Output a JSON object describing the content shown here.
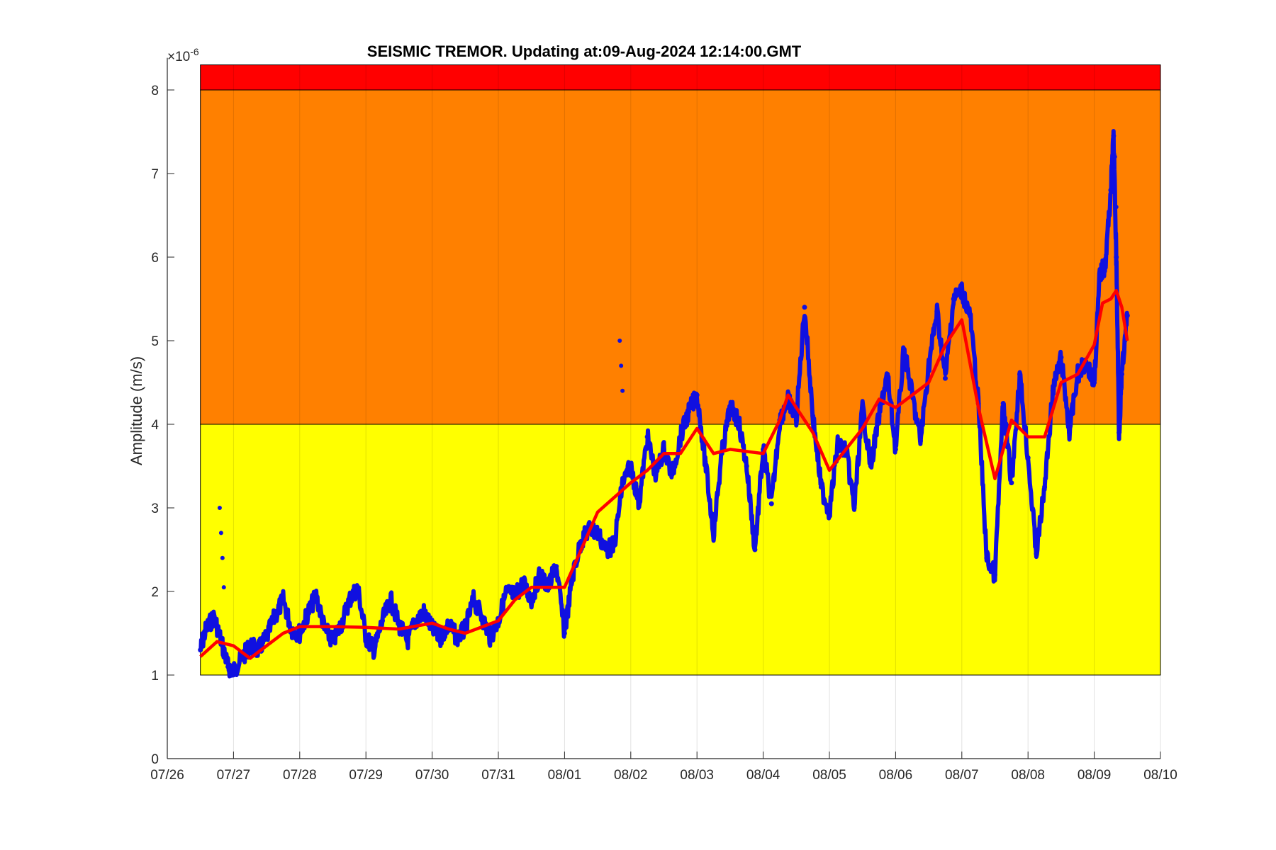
{
  "chart_data": {
    "type": "scatter",
    "title": "SEISMIC TREMOR. Updating at:09-Aug-2024 12:14:00.GMT",
    "ylabel": "Amplitude (m/s)",
    "xlabel": "",
    "y_multiplier_label": "×10",
    "y_multiplier_exponent": "-6",
    "ylim": [
      0,
      8.3
    ],
    "xlim": [
      "07/26",
      "08/10"
    ],
    "grid": "vertical at date ticks",
    "x_ticks": [
      "07/26",
      "07/27",
      "07/28",
      "07/29",
      "07/30",
      "07/31",
      "08/01",
      "08/02",
      "08/03",
      "08/04",
      "08/05",
      "08/06",
      "08/07",
      "08/08",
      "08/09",
      "08/10"
    ],
    "y_ticks": [
      "0",
      "1",
      "2",
      "3",
      "4",
      "5",
      "6",
      "7",
      "8"
    ],
    "threshold_bands": [
      {
        "level": "yellow",
        "from": 1,
        "to": 4,
        "color": "#FFFF00"
      },
      {
        "level": "orange",
        "from": 4,
        "to": 8,
        "color": "#FF8000"
      },
      {
        "level": "red",
        "from": 8,
        "to": 8.3,
        "color": "#FF0000"
      }
    ],
    "series": [
      {
        "kind": "raw-samples",
        "color": "#1010E0",
        "points": [
          [
            "07/26 12:00",
            1.3
          ],
          [
            "07/26 14:00",
            1.55
          ],
          [
            "07/26 17:00",
            1.7
          ],
          [
            "07/26 20:00",
            1.35
          ],
          [
            "07/26 22:00",
            1.1
          ],
          [
            "07/27 00:00",
            1.05
          ],
          [
            "07/27 03:00",
            1.2
          ],
          [
            "07/27 06:00",
            1.35
          ],
          [
            "07/27 09:00",
            1.3
          ],
          [
            "07/27 12:00",
            1.45
          ],
          [
            "07/27 15:00",
            1.7
          ],
          [
            "07/27 18:00",
            1.9
          ],
          [
            "07/27 21:00",
            1.55
          ],
          [
            "07/28 00:00",
            1.5
          ],
          [
            "07/28 03:00",
            1.75
          ],
          [
            "07/28 06:00",
            1.95
          ],
          [
            "07/28 09:00",
            1.55
          ],
          [
            "07/28 12:00",
            1.4
          ],
          [
            "07/28 15:00",
            1.6
          ],
          [
            "07/28 18:00",
            1.9
          ],
          [
            "07/28 21:00",
            2.05
          ],
          [
            "07/29 00:00",
            1.45
          ],
          [
            "07/29 03:00",
            1.3
          ],
          [
            "07/29 06:00",
            1.65
          ],
          [
            "07/29 09:00",
            1.9
          ],
          [
            "07/29 12:00",
            1.6
          ],
          [
            "07/29 15:00",
            1.4
          ],
          [
            "07/29 18:00",
            1.65
          ],
          [
            "07/29 21:00",
            1.75
          ],
          [
            "07/30 00:00",
            1.55
          ],
          [
            "07/30 03:00",
            1.45
          ],
          [
            "07/30 06:00",
            1.6
          ],
          [
            "07/30 09:00",
            1.45
          ],
          [
            "07/30 12:00",
            1.55
          ],
          [
            "07/30 15:00",
            1.9
          ],
          [
            "07/30 18:00",
            1.7
          ],
          [
            "07/30 21:00",
            1.45
          ],
          [
            "07/31 00:00",
            1.65
          ],
          [
            "07/31 03:00",
            2.0
          ],
          [
            "07/31 06:00",
            1.95
          ],
          [
            "07/31 09:00",
            2.1
          ],
          [
            "07/31 12:00",
            1.9
          ],
          [
            "07/31 15:00",
            2.2
          ],
          [
            "07/31 18:00",
            2.05
          ],
          [
            "07/31 21:00",
            2.3
          ],
          [
            "08/01 00:00",
            1.5
          ],
          [
            "08/01 03:00",
            2.2
          ],
          [
            "08/01 06:00",
            2.6
          ],
          [
            "08/01 09:00",
            2.75
          ],
          [
            "08/01 12:00",
            2.7
          ],
          [
            "08/01 15:00",
            2.5
          ],
          [
            "08/01 18:00",
            2.55
          ],
          [
            "08/01 21:00",
            3.3
          ],
          [
            "08/02 00:00",
            3.5
          ],
          [
            "08/02 03:00",
            3.05
          ],
          [
            "08/02 06:00",
            3.85
          ],
          [
            "08/02 09:00",
            3.4
          ],
          [
            "08/02 12:00",
            3.7
          ],
          [
            "08/02 15:00",
            3.4
          ],
          [
            "08/02 18:00",
            3.85
          ],
          [
            "08/02 21:00",
            4.15
          ],
          [
            "08/03 00:00",
            4.35
          ],
          [
            "08/03 03:00",
            3.55
          ],
          [
            "08/03 06:00",
            2.7
          ],
          [
            "08/03 09:00",
            3.65
          ],
          [
            "08/03 12:00",
            4.2
          ],
          [
            "08/03 15:00",
            4.05
          ],
          [
            "08/03 18:00",
            3.5
          ],
          [
            "08/03 21:00",
            2.5
          ],
          [
            "08/04 00:00",
            3.7
          ],
          [
            "08/04 03:00",
            3.05
          ],
          [
            "08/04 06:00",
            4.05
          ],
          [
            "08/04 09:00",
            4.3
          ],
          [
            "08/04 12:00",
            4.05
          ],
          [
            "08/04 15:00",
            5.4
          ],
          [
            "08/04 18:00",
            4.1
          ],
          [
            "08/04 21:00",
            3.25
          ],
          [
            "08/05 00:00",
            2.95
          ],
          [
            "08/05 03:00",
            3.75
          ],
          [
            "08/05 06:00",
            3.7
          ],
          [
            "08/05 09:00",
            3.0
          ],
          [
            "08/05 12:00",
            4.2
          ],
          [
            "08/05 15:00",
            3.5
          ],
          [
            "08/05 18:00",
            4.1
          ],
          [
            "08/05 21:00",
            4.6
          ],
          [
            "08/06 00:00",
            3.7
          ],
          [
            "08/06 03:00",
            4.9
          ],
          [
            "08/06 06:00",
            4.35
          ],
          [
            "08/06 09:00",
            3.8
          ],
          [
            "08/06 12:00",
            4.7
          ],
          [
            "08/06 15:00",
            5.35
          ],
          [
            "08/06 18:00",
            4.55
          ],
          [
            "08/06 21:00",
            5.5
          ],
          [
            "08/07 00:00",
            5.6
          ],
          [
            "08/07 03:00",
            5.3
          ],
          [
            "08/07 06:00",
            4.25
          ],
          [
            "08/07 09:00",
            2.4
          ],
          [
            "08/07 12:00",
            2.2
          ],
          [
            "08/07 15:00",
            4.25
          ],
          [
            "08/07 18:00",
            3.3
          ],
          [
            "08/07 21:00",
            4.6
          ],
          [
            "08/08 00:00",
            3.6
          ],
          [
            "08/08 03:00",
            2.45
          ],
          [
            "08/08 06:00",
            3.25
          ],
          [
            "08/08 09:00",
            4.4
          ],
          [
            "08/08 12:00",
            4.8
          ],
          [
            "08/08 15:00",
            3.9
          ],
          [
            "08/08 18:00",
            4.6
          ],
          [
            "08/08 21:00",
            4.75
          ],
          [
            "08/09 00:00",
            4.5
          ],
          [
            "08/09 02:00",
            5.8
          ],
          [
            "08/09 04:00",
            5.9
          ],
          [
            "08/09 06:00",
            6.8
          ],
          [
            "08/09 07:00",
            7.45
          ],
          [
            "08/09 08:00",
            6.0
          ],
          [
            "08/09 09:00",
            3.9
          ],
          [
            "08/09 10:00",
            4.6
          ],
          [
            "08/09 12:00",
            5.3
          ]
        ],
        "outliers": [
          [
            "07/26 19:00",
            3.0
          ],
          [
            "07/26 19:30",
            2.7
          ],
          [
            "07/26 20:00",
            2.4
          ],
          [
            "07/26 20:30",
            2.05
          ],
          [
            "08/01 20:00",
            5.0
          ],
          [
            "08/01 20:30",
            4.7
          ],
          [
            "08/01 21:00",
            4.4
          ],
          [
            "08/09 07:30",
            7.2
          ],
          [
            "08/09 08:00",
            6.6
          ],
          [
            "08/09 08:30",
            5.5
          ]
        ]
      },
      {
        "kind": "moving-average",
        "color": "#FF0000",
        "points": [
          [
            "07/26 12:00",
            1.22
          ],
          [
            "07/26 18:00",
            1.4
          ],
          [
            "07/27 00:00",
            1.35
          ],
          [
            "07/27 06:00",
            1.2
          ],
          [
            "07/27 12:00",
            1.35
          ],
          [
            "07/27 18:00",
            1.5
          ],
          [
            "07/28 00:00",
            1.58
          ],
          [
            "07/28 12:00",
            1.58
          ],
          [
            "07/29 00:00",
            1.57
          ],
          [
            "07/29 12:00",
            1.55
          ],
          [
            "07/30 00:00",
            1.62
          ],
          [
            "07/30 06:00",
            1.55
          ],
          [
            "07/30 12:00",
            1.5
          ],
          [
            "07/31 00:00",
            1.65
          ],
          [
            "07/31 06:00",
            1.9
          ],
          [
            "07/31 12:00",
            2.05
          ],
          [
            "08/01 00:00",
            2.05
          ],
          [
            "08/01 06:00",
            2.5
          ],
          [
            "08/01 12:00",
            2.95
          ],
          [
            "08/02 00:00",
            3.3
          ],
          [
            "08/02 06:00",
            3.45
          ],
          [
            "08/02 12:00",
            3.65
          ],
          [
            "08/02 18:00",
            3.65
          ],
          [
            "08/03 00:00",
            3.95
          ],
          [
            "08/03 06:00",
            3.65
          ],
          [
            "08/03 12:00",
            3.7
          ],
          [
            "08/04 00:00",
            3.65
          ],
          [
            "08/04 06:00",
            4.05
          ],
          [
            "08/04 09:00",
            4.35
          ],
          [
            "08/04 18:00",
            3.9
          ],
          [
            "08/05 00:00",
            3.45
          ],
          [
            "08/05 06:00",
            3.7
          ],
          [
            "08/05 12:00",
            3.95
          ],
          [
            "08/05 18:00",
            4.3
          ],
          [
            "08/06 00:00",
            4.2
          ],
          [
            "08/06 06:00",
            4.35
          ],
          [
            "08/06 12:00",
            4.5
          ],
          [
            "08/06 18:00",
            4.95
          ],
          [
            "08/07 00:00",
            5.25
          ],
          [
            "08/07 06:00",
            4.2
          ],
          [
            "08/07 12:00",
            3.35
          ],
          [
            "08/07 18:00",
            4.05
          ],
          [
            "08/08 00:00",
            3.85
          ],
          [
            "08/08 06:00",
            3.85
          ],
          [
            "08/08 12:00",
            4.5
          ],
          [
            "08/08 18:00",
            4.6
          ],
          [
            "08/09 00:00",
            4.95
          ],
          [
            "08/09 03:00",
            5.45
          ],
          [
            "08/09 06:00",
            5.5
          ],
          [
            "08/09 08:00",
            5.6
          ],
          [
            "08/09 10:00",
            5.4
          ],
          [
            "08/09 12:00",
            5.0
          ]
        ]
      }
    ]
  }
}
